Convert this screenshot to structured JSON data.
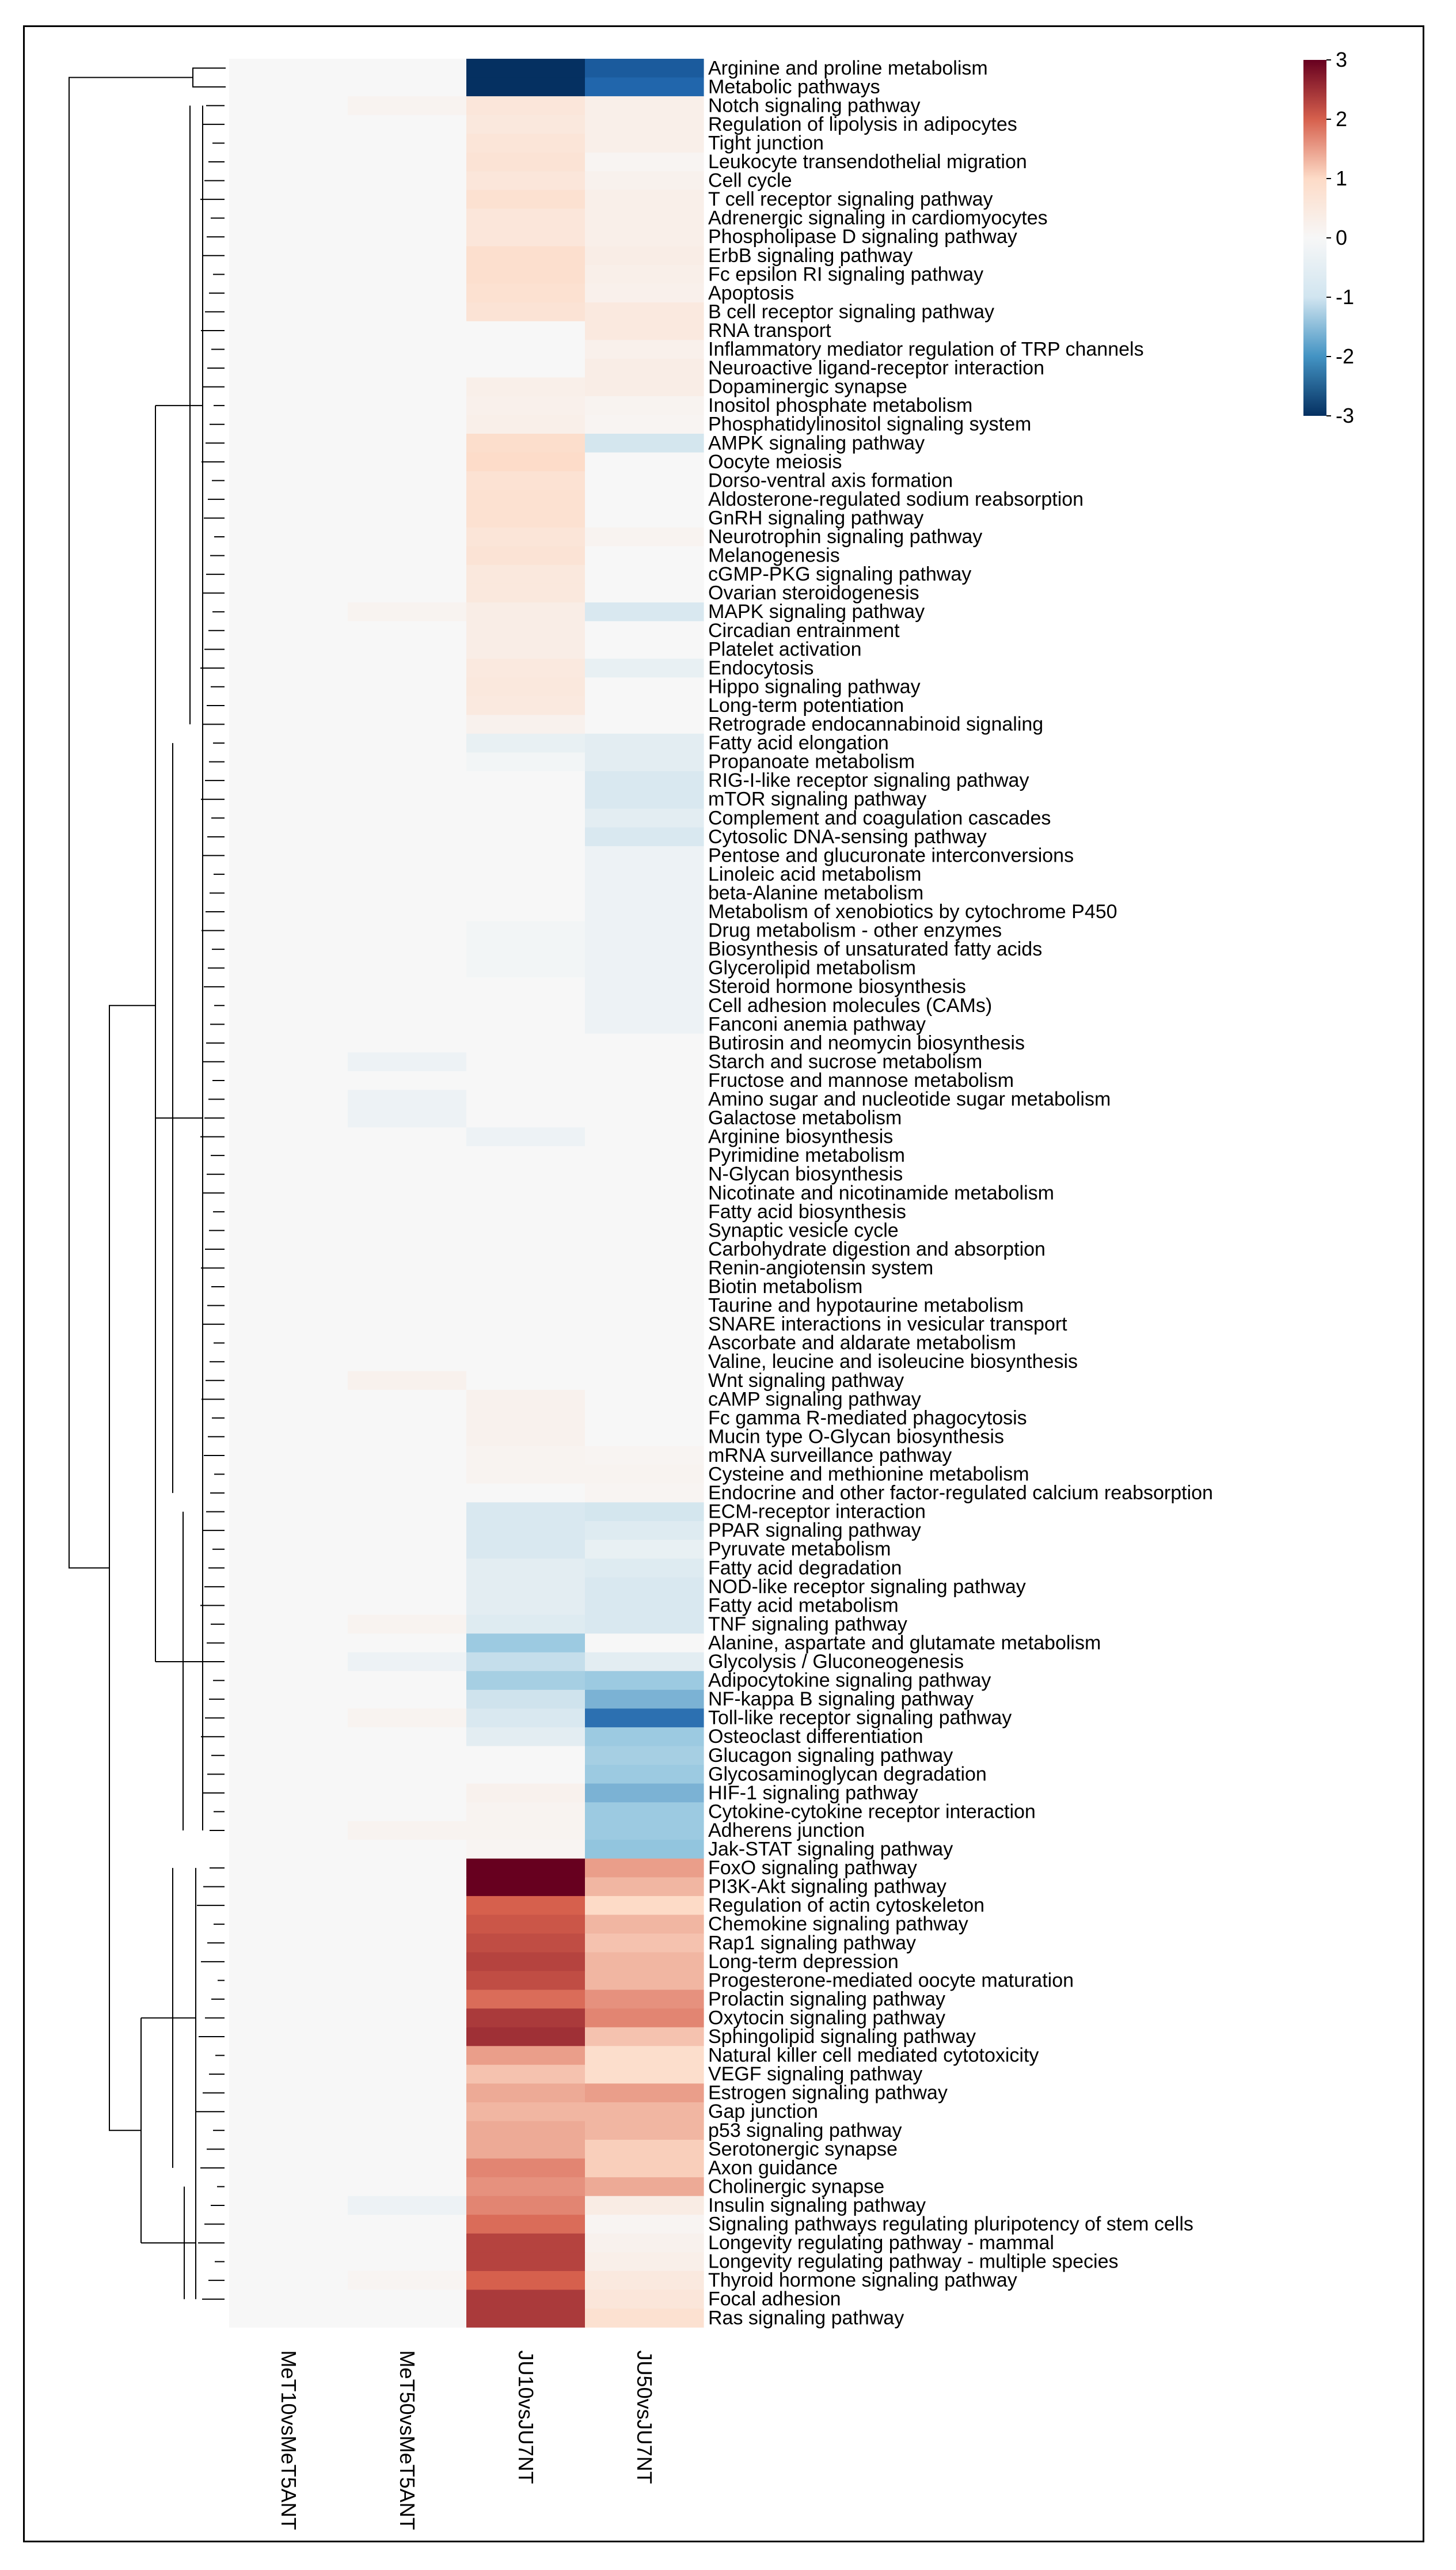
{
  "chart_data": {
    "type": "heatmap",
    "title": "",
    "columns": [
      "MeT10vsMeT5ANT",
      "MeT50vsMeT5ANT",
      "JU10vsJU7NT",
      "JU50vsJU7NT"
    ],
    "colorbar": {
      "min": -3,
      "max": 3,
      "ticks": [
        3,
        2,
        1,
        0,
        -1,
        -2,
        -3
      ],
      "low_color": "#053061",
      "mid_color": "#f7f7f7",
      "high_color": "#67001f"
    },
    "rows": [
      {
        "label": "Arginine and proline metabolism",
        "values": [
          0,
          0,
          -3.0,
          -2.2
        ]
      },
      {
        "label": "Metabolic pathways",
        "values": [
          0,
          0,
          -3.0,
          -2.0
        ]
      },
      {
        "label": "Notch signaling pathway",
        "values": [
          0,
          0.15,
          0.6,
          0.3
        ]
      },
      {
        "label": "Regulation of lipolysis in adipocytes",
        "values": [
          0,
          0,
          0.55,
          0.3
        ]
      },
      {
        "label": "Tight junction",
        "values": [
          0,
          0,
          0.65,
          0.3
        ]
      },
      {
        "label": "Leukocyte transendothelial migration",
        "values": [
          0,
          0,
          0.7,
          0.1
        ]
      },
      {
        "label": "Cell cycle",
        "values": [
          0,
          0,
          0.6,
          0.2
        ]
      },
      {
        "label": "T cell receptor signaling pathway",
        "values": [
          0,
          0,
          0.8,
          0.3
        ]
      },
      {
        "label": "Adrenergic signaling in cardiomyocytes",
        "values": [
          0,
          0,
          0.6,
          0.3
        ]
      },
      {
        "label": "Phospholipase D signaling pathway",
        "values": [
          0,
          0,
          0.6,
          0.3
        ]
      },
      {
        "label": "ErbB signaling pathway",
        "values": [
          0,
          0,
          0.85,
          0.35
        ]
      },
      {
        "label": "Fc epsilon RI signaling pathway",
        "values": [
          0,
          0,
          0.85,
          0.3
        ]
      },
      {
        "label": "Apoptosis",
        "values": [
          0,
          0,
          0.8,
          0.25
        ]
      },
      {
        "label": "B cell receptor signaling pathway",
        "values": [
          0,
          0,
          0.7,
          0.5
        ]
      },
      {
        "label": "RNA transport",
        "values": [
          0,
          0,
          0,
          0.5
        ]
      },
      {
        "label": "Inflammatory mediator regulation of TRP channels",
        "values": [
          0,
          0,
          0,
          0.25
        ]
      },
      {
        "label": "Neuroactive ligand-receptor interaction",
        "values": [
          0,
          0,
          0,
          0.35
        ]
      },
      {
        "label": "Dopaminergic synapse",
        "values": [
          0,
          0,
          0.3,
          0.35
        ]
      },
      {
        "label": "Inositol phosphate metabolism",
        "values": [
          0,
          0,
          0.25,
          0.15
        ]
      },
      {
        "label": "Phosphatidylinositol signaling system",
        "values": [
          0,
          0,
          0.3,
          0.1
        ]
      },
      {
        "label": "AMPK signaling pathway",
        "values": [
          0,
          0,
          0.9,
          -0.35
        ]
      },
      {
        "label": "Oocyte meiosis",
        "values": [
          0,
          0,
          0.95,
          0
        ]
      },
      {
        "label": "Dorso-ventral axis formation",
        "values": [
          0,
          0,
          0.75,
          0
        ]
      },
      {
        "label": "Aldosterone-regulated sodium reabsorption",
        "values": [
          0,
          0,
          0.8,
          0
        ]
      },
      {
        "label": "GnRH signaling pathway",
        "values": [
          0,
          0,
          0.8,
          0
        ]
      },
      {
        "label": "Neurotrophin signaling pathway",
        "values": [
          0,
          0,
          0.65,
          0.15
        ]
      },
      {
        "label": "Melanogenesis",
        "values": [
          0,
          0,
          0.7,
          0
        ]
      },
      {
        "label": "cGMP-PKG signaling pathway",
        "values": [
          0,
          0,
          0.55,
          0
        ]
      },
      {
        "label": "Ovarian steroidogenesis",
        "values": [
          0,
          0,
          0.55,
          0
        ]
      },
      {
        "label": "MAPK signaling pathway",
        "values": [
          0,
          0.15,
          0.35,
          -0.3
        ]
      },
      {
        "label": "Circadian entrainment",
        "values": [
          0,
          0,
          0.35,
          0
        ]
      },
      {
        "label": "Platelet activation",
        "values": [
          0,
          0,
          0.35,
          0
        ]
      },
      {
        "label": "Endocytosis",
        "values": [
          0,
          0,
          0.5,
          -0.15
        ]
      },
      {
        "label": "Hippo signaling pathway",
        "values": [
          0,
          0,
          0.55,
          0
        ]
      },
      {
        "label": "Long-term potentiation",
        "values": [
          0,
          0,
          0.5,
          0
        ]
      },
      {
        "label": "Retrograde endocannabinoid signaling",
        "values": [
          0,
          0,
          0.2,
          0
        ]
      },
      {
        "label": "Fatty acid elongation",
        "values": [
          0,
          0,
          -0.15,
          -0.2
        ]
      },
      {
        "label": "Propanoate metabolism",
        "values": [
          0,
          0,
          -0.05,
          -0.2
        ]
      },
      {
        "label": "RIG-I-like receptor signaling pathway",
        "values": [
          0,
          0,
          0,
          -0.3
        ]
      },
      {
        "label": "mTOR signaling pathway",
        "values": [
          0,
          0,
          0,
          -0.3
        ]
      },
      {
        "label": "Complement and coagulation cascades",
        "values": [
          0,
          0,
          0,
          -0.2
        ]
      },
      {
        "label": "Cytosolic DNA-sensing pathway",
        "values": [
          0,
          0,
          0,
          -0.3
        ]
      },
      {
        "label": "Pentose and glucuronate interconversions",
        "values": [
          0,
          0,
          0,
          -0.1
        ]
      },
      {
        "label": "Linoleic acid metabolism",
        "values": [
          0,
          0,
          0,
          -0.1
        ]
      },
      {
        "label": "beta-Alanine metabolism",
        "values": [
          0,
          0,
          0,
          -0.1
        ]
      },
      {
        "label": "Metabolism of xenobiotics by cytochrome P450",
        "values": [
          0,
          0,
          0,
          -0.1
        ]
      },
      {
        "label": "Drug metabolism - other enzymes",
        "values": [
          0,
          0,
          -0.05,
          -0.1
        ]
      },
      {
        "label": "Biosynthesis of unsaturated fatty acids",
        "values": [
          0,
          0,
          -0.05,
          -0.1
        ]
      },
      {
        "label": "Glycerolipid metabolism",
        "values": [
          0,
          0,
          -0.05,
          -0.1
        ]
      },
      {
        "label": "Steroid hormone biosynthesis",
        "values": [
          0,
          0,
          0,
          -0.1
        ]
      },
      {
        "label": "Cell adhesion molecules (CAMs)",
        "values": [
          0,
          0,
          0,
          -0.1
        ]
      },
      {
        "label": "Fanconi anemia pathway",
        "values": [
          0,
          0,
          0,
          -0.1
        ]
      },
      {
        "label": "Butirosin and neomycin biosynthesis",
        "values": [
          0,
          0,
          0,
          0
        ]
      },
      {
        "label": "Starch and sucrose metabolism",
        "values": [
          0,
          -0.1,
          0,
          0
        ]
      },
      {
        "label": "Fructose and mannose metabolism",
        "values": [
          0,
          0,
          0,
          0
        ]
      },
      {
        "label": "Amino sugar and nucleotide sugar metabolism",
        "values": [
          0,
          -0.1,
          0,
          0
        ]
      },
      {
        "label": "Galactose metabolism",
        "values": [
          0,
          -0.1,
          0,
          0
        ]
      },
      {
        "label": "Arginine biosynthesis",
        "values": [
          0,
          0,
          -0.1,
          0
        ]
      },
      {
        "label": "Pyrimidine metabolism",
        "values": [
          0,
          0,
          0,
          0
        ]
      },
      {
        "label": "N-Glycan biosynthesis",
        "values": [
          0,
          0,
          0,
          0
        ]
      },
      {
        "label": "Nicotinate and nicotinamide metabolism",
        "values": [
          0,
          0,
          0,
          0
        ]
      },
      {
        "label": "Fatty acid biosynthesis",
        "values": [
          0,
          0,
          0,
          0
        ]
      },
      {
        "label": "Synaptic vesicle cycle",
        "values": [
          0,
          0,
          0,
          0
        ]
      },
      {
        "label": "Carbohydrate digestion and absorption",
        "values": [
          0,
          0,
          0,
          0
        ]
      },
      {
        "label": "Renin-angiotensin system",
        "values": [
          0,
          0,
          0,
          0
        ]
      },
      {
        "label": "Biotin metabolism",
        "values": [
          0,
          0,
          0,
          0
        ]
      },
      {
        "label": "Taurine and hypotaurine metabolism",
        "values": [
          0,
          0,
          0,
          0
        ]
      },
      {
        "label": "SNARE interactions in vesicular transport",
        "values": [
          0,
          0,
          0,
          0
        ]
      },
      {
        "label": "Ascorbate and aldarate metabolism",
        "values": [
          0,
          0,
          0,
          0
        ]
      },
      {
        "label": "Valine, leucine and isoleucine biosynthesis",
        "values": [
          0,
          0,
          0,
          0
        ]
      },
      {
        "label": "Wnt signaling pathway",
        "values": [
          0,
          0.2,
          0,
          0
        ]
      },
      {
        "label": "cAMP signaling pathway",
        "values": [
          0,
          0,
          0.2,
          0
        ]
      },
      {
        "label": "Fc gamma R-mediated phagocytosis",
        "values": [
          0,
          0,
          0.2,
          0
        ]
      },
      {
        "label": "Mucin type O-Glycan biosynthesis",
        "values": [
          0,
          0,
          0.2,
          0
        ]
      },
      {
        "label": "mRNA surveillance pathway",
        "values": [
          0,
          0,
          0.15,
          0.1
        ]
      },
      {
        "label": "Cysteine and methionine metabolism",
        "values": [
          0,
          0,
          0.15,
          0.15
        ]
      },
      {
        "label": "Endocrine and other factor-regulated calcium reabsorption",
        "values": [
          0,
          0,
          0,
          0.1
        ]
      },
      {
        "label": "ECM-receptor interaction",
        "values": [
          0,
          0,
          -0.3,
          -0.35
        ]
      },
      {
        "label": "PPAR signaling pathway",
        "values": [
          0,
          0,
          -0.3,
          -0.25
        ]
      },
      {
        "label": "Pyruvate metabolism",
        "values": [
          0,
          0,
          -0.3,
          -0.15
        ]
      },
      {
        "label": "Fatty acid degradation",
        "values": [
          0,
          0,
          -0.2,
          -0.25
        ]
      },
      {
        "label": "NOD-like receptor signaling pathway",
        "values": [
          0,
          0,
          -0.2,
          -0.3
        ]
      },
      {
        "label": "Fatty acid metabolism",
        "values": [
          0,
          0,
          -0.2,
          -0.3
        ]
      },
      {
        "label": "TNF signaling pathway",
        "values": [
          0,
          0.15,
          -0.25,
          -0.3
        ]
      },
      {
        "label": "Alanine, aspartate and glutamate metabolism",
        "values": [
          0,
          0,
          -0.9,
          0
        ]
      },
      {
        "label": "Glycolysis / Gluconeogenesis",
        "values": [
          0,
          -0.1,
          -0.5,
          -0.2
        ]
      },
      {
        "label": "Adipocytokine signaling pathway",
        "values": [
          0,
          0,
          -0.8,
          -0.9
        ]
      },
      {
        "label": "NF-kappa B signaling pathway",
        "values": [
          0,
          0,
          -0.4,
          -1.2
        ]
      },
      {
        "label": "Toll-like receptor signaling pathway",
        "values": [
          0,
          0.15,
          -0.3,
          -1.9
        ]
      },
      {
        "label": "Osteoclast differentiation",
        "values": [
          0,
          0,
          -0.2,
          -0.9
        ]
      },
      {
        "label": "Glucagon signaling pathway",
        "values": [
          0,
          0,
          0,
          -0.8
        ]
      },
      {
        "label": "Glycosaminoglycan degradation",
        "values": [
          0,
          0,
          0,
          -0.9
        ]
      },
      {
        "label": "HIF-1 signaling pathway",
        "values": [
          0,
          0,
          0.2,
          -1.2
        ]
      },
      {
        "label": "Cytokine-cytokine receptor interaction",
        "values": [
          0,
          0,
          0.15,
          -0.9
        ]
      },
      {
        "label": "Adherens junction",
        "values": [
          0,
          0.15,
          0.15,
          -0.9
        ]
      },
      {
        "label": "Jak-STAT signaling pathway",
        "values": [
          0,
          0,
          0.1,
          -1.0
        ]
      },
      {
        "label": "FoxO signaling pathway",
        "values": [
          0,
          0,
          3.0,
          1.5
        ]
      },
      {
        "label": "PI3K-Akt signaling pathway",
        "values": [
          0,
          0,
          3.0,
          1.3
        ]
      },
      {
        "label": "Regulation of actin cytoskeleton",
        "values": [
          0,
          0,
          2.0,
          1.0
        ]
      },
      {
        "label": "Chemokine signaling pathway",
        "values": [
          0,
          0,
          2.1,
          1.3
        ]
      },
      {
        "label": "Rap1 signaling pathway",
        "values": [
          0,
          0,
          2.2,
          1.2
        ]
      },
      {
        "label": "Long-term depression",
        "values": [
          0,
          0,
          2.3,
          1.3
        ]
      },
      {
        "label": "Progesterone-mediated oocyte maturation",
        "values": [
          0,
          0,
          2.2,
          1.3
        ]
      },
      {
        "label": "Prolactin signaling pathway",
        "values": [
          0,
          0,
          1.9,
          1.6
        ]
      },
      {
        "label": "Oxytocin signaling pathway",
        "values": [
          0,
          0,
          2.4,
          1.7
        ]
      },
      {
        "label": "Sphingolipid signaling pathway",
        "values": [
          0,
          0,
          2.5,
          1.2
        ]
      },
      {
        "label": "Natural killer cell mediated cytotoxicity",
        "values": [
          0,
          0,
          1.5,
          0.9
        ]
      },
      {
        "label": "VEGF signaling pathway",
        "values": [
          0,
          0,
          1.2,
          0.9
        ]
      },
      {
        "label": "Estrogen signaling pathway",
        "values": [
          0,
          0,
          1.4,
          1.5
        ]
      },
      {
        "label": "Gap junction",
        "values": [
          0,
          0,
          1.3,
          1.3
        ]
      },
      {
        "label": "p53 signaling pathway",
        "values": [
          0,
          0,
          1.4,
          1.3
        ]
      },
      {
        "label": "Serotonergic synapse",
        "values": [
          0,
          0,
          1.4,
          1.1
        ]
      },
      {
        "label": "Axon guidance",
        "values": [
          0,
          0,
          1.7,
          1.1
        ]
      },
      {
        "label": "Cholinergic synapse",
        "values": [
          0,
          0,
          1.6,
          1.4
        ]
      },
      {
        "label": "Insulin signaling pathway",
        "values": [
          0,
          -0.1,
          1.7,
          0.4
        ]
      },
      {
        "label": "Signaling pathways regulating pluripotency of stem cells",
        "values": [
          0,
          0,
          1.9,
          0.1
        ]
      },
      {
        "label": "Longevity regulating pathway - mammal",
        "values": [
          0,
          0,
          2.3,
          0.2
        ]
      },
      {
        "label": "Longevity regulating pathway - multiple species",
        "values": [
          0,
          0,
          2.3,
          0.3
        ]
      },
      {
        "label": "Thyroid hormone signaling pathway",
        "values": [
          0,
          0.1,
          2.0,
          0.5
        ]
      },
      {
        "label": "Focal adhesion",
        "values": [
          0,
          0,
          2.4,
          0.6
        ]
      },
      {
        "label": "Ras signaling pathway",
        "values": [
          0,
          0,
          2.4,
          0.8
        ]
      }
    ]
  }
}
